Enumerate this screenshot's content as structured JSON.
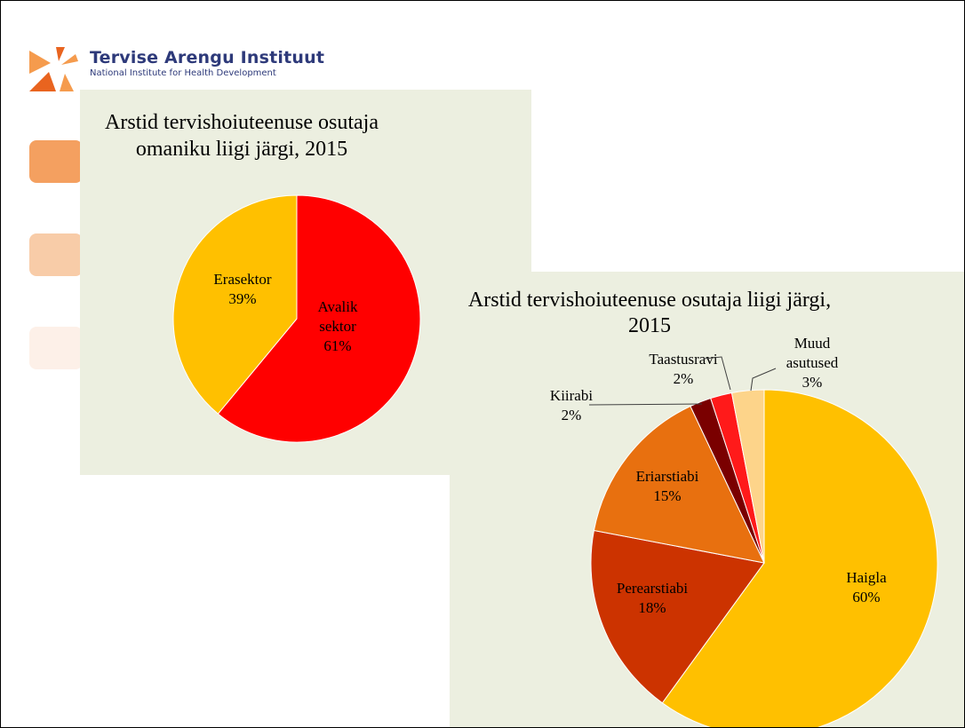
{
  "logo": {
    "title": "Tervise Arengu Instituut",
    "subtitle": "National Institute for Health Development",
    "colors": [
      "#f59b4d",
      "#e9641f",
      "#f7b978"
    ]
  },
  "swatches": [
    {
      "name": "swatch-1",
      "color": "#f4a060"
    },
    {
      "name": "swatch-2",
      "color": "#f8cca8"
    },
    {
      "name": "swatch-3",
      "color": "#fdf0e8"
    }
  ],
  "chart_data": [
    {
      "type": "pie",
      "title": [
        "Arstid tervishoiuteenuse osutaja",
        "omaniku liigi järgi, 2015"
      ],
      "slices": [
        {
          "label": [
            "Avalik",
            "sektor"
          ],
          "value": 61,
          "pct_label": "61%",
          "color": "#ff0000"
        },
        {
          "label": [
            "Erasektor"
          ],
          "value": 39,
          "pct_label": "39%",
          "color": "#ffc000"
        }
      ]
    },
    {
      "type": "pie",
      "title": [
        "Arstid tervishoiuteenuse osutaja liigi järgi,",
        "2015"
      ],
      "slices": [
        {
          "label": [
            "Haigla"
          ],
          "value": 60,
          "pct_label": "60%",
          "color": "#ffc000"
        },
        {
          "label": [
            "Perearstiabi"
          ],
          "value": 18,
          "pct_label": "18%",
          "color": "#cc3300"
        },
        {
          "label": [
            "Eriarstiabi"
          ],
          "value": 15,
          "pct_label": "15%",
          "color": "#e8700f"
        },
        {
          "label": [
            "Kiirabi"
          ],
          "value": 2,
          "pct_label": "2%",
          "color": "#7a0000"
        },
        {
          "label": [
            "Taastusravi"
          ],
          "value": 2,
          "pct_label": "2%",
          "color": "#ff1a1a"
        },
        {
          "label": [
            "Muud",
            "asutused"
          ],
          "value": 3,
          "pct_label": "3%",
          "color": "#fdd48a"
        }
      ]
    }
  ]
}
